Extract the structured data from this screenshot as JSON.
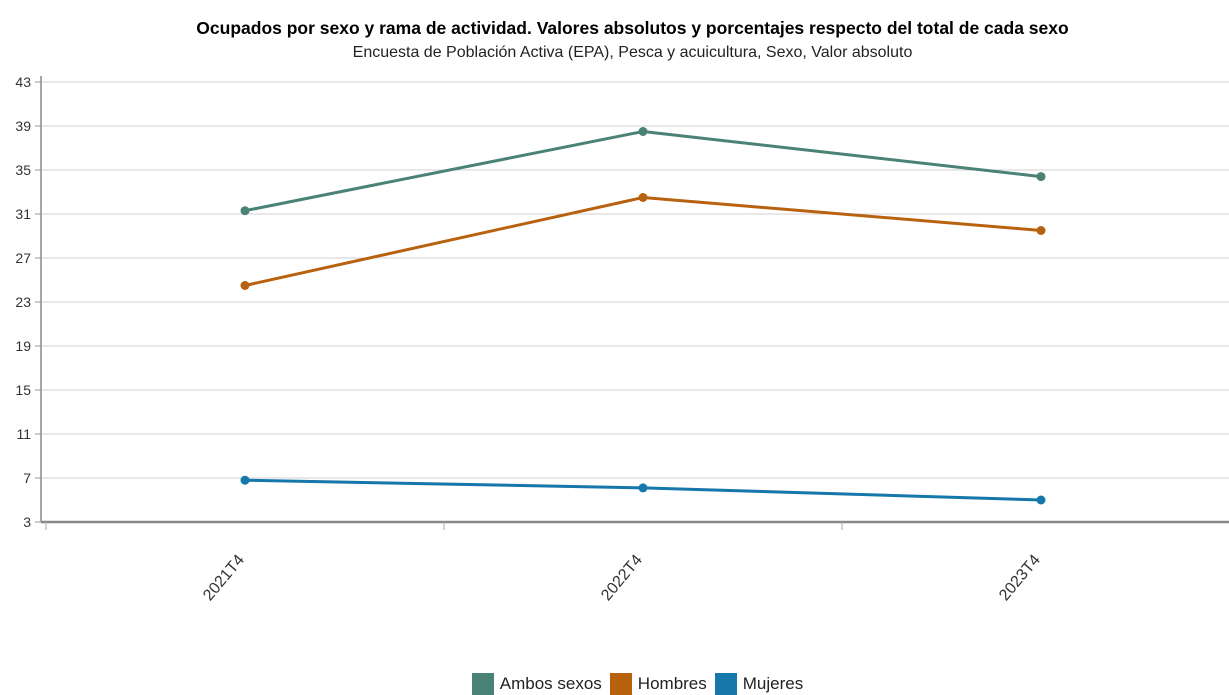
{
  "chart_data": {
    "type": "line",
    "title": "Ocupados por sexo y rama de actividad. Valores absolutos y porcentajes respecto del total de cada sexo",
    "subtitle": "Encuesta de Población Activa (EPA), Pesca y acuicultura, Sexo, Valor absoluto",
    "xlabel": "",
    "ylabel": "",
    "categories": [
      "2021T4",
      "2022T4",
      "2023T4"
    ],
    "series": [
      {
        "name": "Ambos sexos",
        "color": "#4a8276",
        "values": [
          31.3,
          38.5,
          34.4
        ]
      },
      {
        "name": "Hombres",
        "color": "#b8620f",
        "values": [
          24.5,
          32.5,
          29.5
        ]
      },
      {
        "name": "Mujeres",
        "color": "#1677ab",
        "values": [
          6.8,
          6.1,
          5.0
        ]
      }
    ],
    "ylim": [
      3,
      43
    ],
    "yticks": [
      "43",
      "39",
      "35",
      "31",
      "27",
      "23",
      "19",
      "15",
      "11",
      "7",
      "3"
    ],
    "grid": true,
    "legend_position": "bottom"
  }
}
